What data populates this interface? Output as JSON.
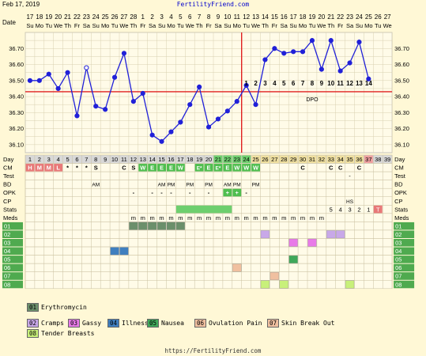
{
  "header": {
    "date": "Feb 17, 2019",
    "site": "FertilityFriend.com"
  },
  "footer": {
    "site": "https://FertilityFriend.com"
  },
  "chart_data": {
    "type": "line",
    "title": "",
    "dates": [
      "17",
      "18",
      "19",
      "20",
      "21",
      "22",
      "23",
      "24",
      "25",
      "26",
      "27",
      "28",
      "1",
      "2",
      "3",
      "4",
      "5",
      "6",
      "7",
      "8",
      "9",
      "10",
      "11",
      "12",
      "13",
      "14",
      "15",
      "16",
      "17",
      "18",
      "19",
      "20",
      "21",
      "22",
      "23",
      "24",
      "25",
      "26",
      "27"
    ],
    "weekdays": [
      "Su",
      "Mo",
      "Tu",
      "We",
      "Th",
      "Fr",
      "Sa",
      "Su",
      "Mo",
      "Tu",
      "We",
      "Th",
      "Fr",
      "Sa",
      "Su",
      "Mo",
      "Tu",
      "We",
      "Th",
      "Fr",
      "Sa",
      "Su",
      "Mo",
      "Tu",
      "We",
      "Th",
      "Fr",
      "Sa",
      "Su",
      "Mo",
      "Tu",
      "We",
      "Th",
      "Fr",
      "Sa",
      "Su",
      "Mo",
      "Tu",
      "We"
    ],
    "temps": [
      36.5,
      36.5,
      36.54,
      36.45,
      36.55,
      36.28,
      36.58,
      36.34,
      36.32,
      36.52,
      36.67,
      36.37,
      36.42,
      36.16,
      36.12,
      36.18,
      36.24,
      36.35,
      36.46,
      36.21,
      36.26,
      36.31,
      36.37,
      36.47,
      36.35,
      36.63,
      36.7,
      36.67,
      36.68,
      36.68,
      36.75,
      36.57,
      36.75,
      36.56,
      36.61,
      36.74,
      36.51
    ],
    "open_points": [
      6
    ],
    "ylim": [
      36.05,
      36.8
    ],
    "yticks": [
      "36.10",
      "36.20",
      "36.30",
      "36.40",
      "36.50",
      "36.60",
      "36.70"
    ],
    "coverline": 36.43,
    "ovulation_day": 23,
    "dpo_labels": [
      "1",
      "2",
      "3",
      "4",
      "5",
      "6",
      "7",
      "8",
      "9",
      "10",
      "11",
      "12",
      "13",
      "14"
    ],
    "dpo_text": "DPO",
    "grid": true
  },
  "rows": {
    "labels": [
      "Day",
      "CM",
      "Test",
      "BD",
      "OPK",
      "CP",
      "Stats",
      "Meds",
      "01",
      "02",
      "03",
      "04",
      "05",
      "06",
      "07",
      "08"
    ],
    "day_numbers": [
      "1",
      "2",
      "3",
      "4",
      "5",
      "6",
      "7",
      "8",
      "9",
      "10",
      "11",
      "12",
      "13",
      "14",
      "15",
      "16",
      "17",
      "18",
      "19",
      "20",
      "21",
      "22",
      "23",
      "24",
      "25",
      "26",
      "27",
      "28",
      "29",
      "30",
      "31",
      "32",
      "33",
      "34",
      "35",
      "36",
      "37",
      "38",
      "39"
    ],
    "cm": [
      {
        "d": 1,
        "t": "H",
        "c": "#e87878"
      },
      {
        "d": 2,
        "t": "M",
        "c": "#e87878"
      },
      {
        "d": 3,
        "t": "M",
        "c": "#e87878"
      },
      {
        "d": 4,
        "t": "L",
        "c": "#e87878"
      },
      {
        "d": 5,
        "t": "*"
      },
      {
        "d": 6,
        "t": "*"
      },
      {
        "d": 7,
        "t": "*"
      },
      {
        "d": 8,
        "t": "S"
      },
      {
        "d": 11,
        "t": "C"
      },
      {
        "d": 12,
        "t": "S"
      },
      {
        "d": 13,
        "t": "W",
        "c": "#4fbe4f"
      },
      {
        "d": 14,
        "t": "E",
        "c": "#4fbe4f"
      },
      {
        "d": 15,
        "t": "E",
        "c": "#4fbe4f"
      },
      {
        "d": 16,
        "t": "E",
        "c": "#4fbe4f"
      },
      {
        "d": 17,
        "t": "W",
        "c": "#4fbe4f"
      },
      {
        "d": 19,
        "t": "E*",
        "c": "#4fbe4f"
      },
      {
        "d": 20,
        "t": "E",
        "c": "#4fbe4f"
      },
      {
        "d": 21,
        "t": "E*",
        "c": "#4fbe4f"
      },
      {
        "d": 22,
        "t": "E",
        "c": "#4fbe4f"
      },
      {
        "d": 23,
        "t": "W",
        "c": "#4fbe4f"
      },
      {
        "d": 24,
        "t": "W",
        "c": "#4fbe4f"
      },
      {
        "d": 25,
        "t": "W",
        "c": "#4fbe4f"
      },
      {
        "d": 30,
        "t": "C"
      },
      {
        "d": 33,
        "t": "C"
      },
      {
        "d": 34,
        "t": "C"
      },
      {
        "d": 36,
        "t": "C"
      }
    ],
    "test": [
      {
        "d": 35,
        "t": "-"
      }
    ],
    "bd": [
      {
        "d": 8,
        "t": "AM"
      },
      {
        "d": 15,
        "t": "AM"
      },
      {
        "d": 16,
        "t": "PM"
      },
      {
        "d": 18,
        "t": "PM"
      },
      {
        "d": 20,
        "t": "PM"
      },
      {
        "d": 22,
        "t": "AM"
      },
      {
        "d": 23,
        "t": "PM"
      },
      {
        "d": 25,
        "t": "PM"
      }
    ],
    "opk": [
      {
        "d": 12,
        "t": "-"
      },
      {
        "d": 14,
        "t": "-"
      },
      {
        "d": 15,
        "t": "-"
      },
      {
        "d": 16,
        "t": "-"
      },
      {
        "d": 18,
        "t": "-"
      },
      {
        "d": 20,
        "t": "-"
      },
      {
        "d": 22,
        "t": "+",
        "c": "#4fbe4f"
      },
      {
        "d": 23,
        "t": "+",
        "c": "#4fbe4f"
      },
      {
        "d": 24,
        "t": "-"
      }
    ],
    "cp": [
      {
        "d": 35,
        "t": "HS"
      }
    ],
    "stats": [
      {
        "d": 33,
        "t": "5"
      },
      {
        "d": 34,
        "t": "4"
      },
      {
        "d": 35,
        "t": "3"
      },
      {
        "d": 36,
        "t": "2"
      },
      {
        "d": 37,
        "t": "1"
      },
      {
        "d": 38,
        "t": "T",
        "c": "#e87878"
      }
    ],
    "stats_band": {
      "from": 17,
      "to": 22,
      "color": "#6ecf6e"
    },
    "meds": [
      {
        "d": 12,
        "t": "m"
      },
      {
        "d": 13,
        "t": "m"
      },
      {
        "d": 14,
        "t": "m"
      },
      {
        "d": 15,
        "t": "m"
      },
      {
        "d": 16,
        "t": "m"
      },
      {
        "d": 17,
        "t": "m"
      },
      {
        "d": 18,
        "t": "m"
      },
      {
        "d": 19,
        "t": "m"
      },
      {
        "d": 20,
        "t": "m"
      },
      {
        "d": 21,
        "t": "m"
      },
      {
        "d": 22,
        "t": "m"
      },
      {
        "d": 23,
        "t": "m"
      },
      {
        "d": 24,
        "t": "m"
      },
      {
        "d": 25,
        "t": "m"
      },
      {
        "d": 26,
        "t": "m"
      },
      {
        "d": 27,
        "t": "m"
      },
      {
        "d": 28,
        "t": "m"
      },
      {
        "d": 29,
        "t": "m"
      },
      {
        "d": 30,
        "t": "m"
      },
      {
        "d": 31,
        "t": "m"
      },
      {
        "d": 32,
        "t": "m"
      }
    ],
    "symptoms": {
      "01": {
        "color": "#6b8f6b",
        "days": [
          12,
          13,
          14,
          15,
          16,
          17
        ]
      },
      "02": {
        "color": "#c8a8e8",
        "days": [
          26,
          33,
          34
        ]
      },
      "03": {
        "color": "#e87ae8",
        "days": [
          29,
          31
        ]
      },
      "04": {
        "color": "#3f7fbf",
        "days": [
          10,
          11
        ]
      },
      "05": {
        "color": "#3fa85a",
        "days": [
          29
        ]
      },
      "06": {
        "color": "#f0c0a0",
        "days": [
          23
        ]
      },
      "07": {
        "color": "#f0c0a0",
        "days": [
          27
        ]
      },
      "08": {
        "color": "#c8f07a",
        "days": [
          26,
          28,
          35
        ]
      }
    }
  },
  "legend": [
    {
      "code": "01",
      "label": "Erythromycin",
      "color": "#6b8f6b"
    },
    {
      "code": "02",
      "label": "Cramps",
      "color": "#c8a8e8"
    },
    {
      "code": "03",
      "label": "Gassy",
      "color": "#e87ae8"
    },
    {
      "code": "04",
      "label": "Illness",
      "color": "#3f7fbf"
    },
    {
      "code": "05",
      "label": "Nausea",
      "color": "#3fa85a"
    },
    {
      "code": "06",
      "label": "Ovulation Pain",
      "color": "#f0c0a0"
    },
    {
      "code": "07",
      "label": "Skin Break Out",
      "color": "#f0c0a0"
    },
    {
      "code": "08",
      "label": "Tender Breasts",
      "color": "#c8f07a"
    }
  ]
}
